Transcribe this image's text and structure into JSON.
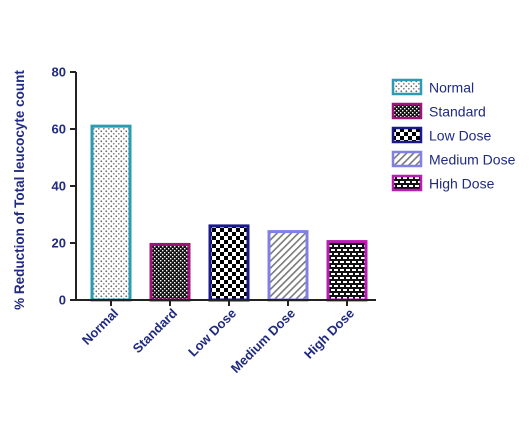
{
  "chart_data": {
    "type": "bar",
    "title": "",
    "xlabel": "",
    "ylabel": "% Reduction of Total leucocyte count",
    "ylim": [
      0,
      80
    ],
    "yticks": [
      "0",
      "20",
      "40",
      "60",
      "80"
    ],
    "categories": [
      "Normal",
      "Standard",
      "Low Dose",
      "Medium Dose",
      "High Dose"
    ],
    "values": [
      61,
      19.5,
      26,
      24,
      20.5
    ],
    "legend_position": "right",
    "grid": false,
    "bars": [
      {
        "label": "Normal",
        "value": 61,
        "pattern": "dots",
        "border_color": "#2a9bb0"
      },
      {
        "label": "Standard",
        "value": 19.5,
        "pattern": "dense",
        "border_color": "#a0147a"
      },
      {
        "label": "Low Dose",
        "value": 26,
        "pattern": "checker",
        "border_color": "#1a1a8c"
      },
      {
        "label": "Medium Dose",
        "value": 24,
        "pattern": "diagonal",
        "border_color": "#8080e6"
      },
      {
        "label": "High Dose",
        "value": 20.5,
        "pattern": "bricks",
        "border_color": "#b81fb0"
      }
    ]
  },
  "colors": {
    "text": "#1f2a80",
    "axis": "#222222"
  }
}
